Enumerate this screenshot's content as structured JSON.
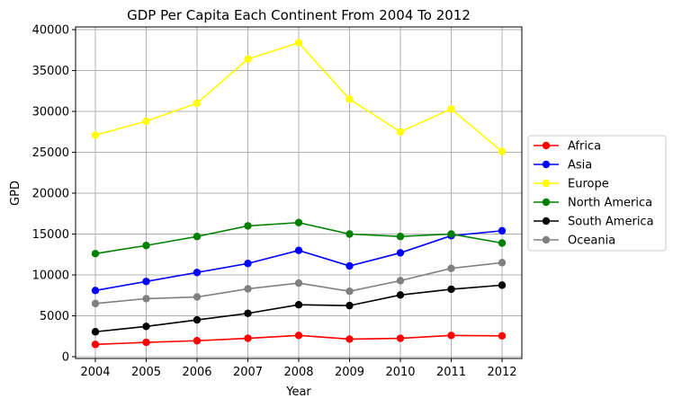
{
  "chart_data": {
    "type": "line",
    "title": "GDP Per Capita Each Continent From 2004 To 2012",
    "xlabel": "Year",
    "ylabel": "GPD",
    "x": [
      "2004",
      "2005",
      "2006",
      "2007",
      "2008",
      "2009",
      "2010",
      "2011",
      "2012"
    ],
    "ylim": [
      0,
      40000
    ],
    "yticks": [
      0,
      5000,
      10000,
      15000,
      20000,
      25000,
      30000,
      35000,
      40000
    ],
    "grid": true,
    "legend_position": "right",
    "series": [
      {
        "name": "Africa",
        "color": "#ff0000",
        "values": [
          1500,
          1750,
          1950,
          2250,
          2600,
          2150,
          2250,
          2600,
          2550
        ]
      },
      {
        "name": "Asia",
        "color": "#0000ff",
        "values": [
          8100,
          9200,
          10300,
          11400,
          13000,
          11100,
          12700,
          14800,
          15400
        ]
      },
      {
        "name": "Europe",
        "color": "#ffff00",
        "values": [
          27100,
          28800,
          31000,
          36400,
          38400,
          31500,
          27500,
          30300,
          25100
        ]
      },
      {
        "name": "North America",
        "color": "#008000",
        "values": [
          12600,
          13600,
          14700,
          16000,
          16400,
          15000,
          14700,
          15000,
          13900
        ]
      },
      {
        "name": "South America",
        "color": "#000000",
        "values": [
          3050,
          3700,
          4500,
          5300,
          6350,
          6250,
          7550,
          8250,
          8750
        ]
      },
      {
        "name": "Oceania",
        "color": "#808080",
        "values": [
          6500,
          7100,
          7300,
          8300,
          9000,
          8000,
          9300,
          10800,
          11500
        ]
      }
    ]
  }
}
